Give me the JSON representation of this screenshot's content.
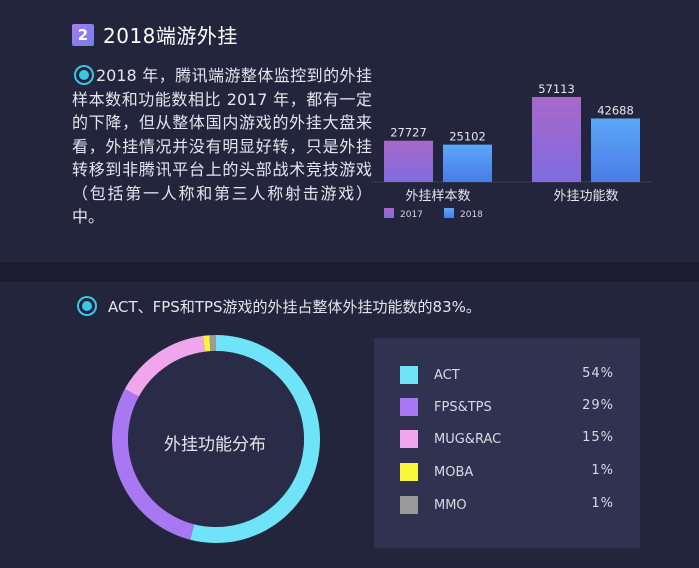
{
  "header": {
    "number": "2",
    "title": "2018端游外挂"
  },
  "intro": {
    "text": "2018 年，腾讯端游整体监控到的外挂样本数和功能数相比 2017 年，都有一定的下降，但从整体国内游戏的外挂大盘来看，外挂情况并没有明显好转，只是外挂转移到非腾讯平台上的头部战术竞技游戏（包括第一人称和第三人称射击游戏）中。"
  },
  "summary": {
    "text": "ACT、FPS和TPS游戏的外挂占整体外挂功能数的83%。"
  },
  "donut_center_label": "外挂功能分布",
  "colors": {
    "accent": "#39c8e6",
    "bar_2017_top": "#a968c9",
    "bar_2017_bottom": "#7f6ce0",
    "bar_2018_top": "#5aa7f7",
    "bar_2018_bottom": "#4a7ce8"
  },
  "chart_data": [
    {
      "type": "bar",
      "categories": [
        "外挂样本数",
        "外挂功能数"
      ],
      "series": [
        {
          "name": "2017",
          "values": [
            27727,
            57113
          ],
          "color": "#9a6ad4"
        },
        {
          "name": "2018",
          "values": [
            25102,
            42688
          ],
          "color": "#58a3f5"
        }
      ],
      "data_labels": [
        [
          "27727",
          "57113"
        ],
        [
          "25102",
          "42688"
        ]
      ],
      "legend_position": "bottom-left",
      "grid": false
    },
    {
      "type": "pie",
      "title": "外挂功能分布",
      "labels": [
        "ACT",
        "FPS&TPS",
        "MUG&RAC",
        "MOBA",
        "MMO"
      ],
      "values": [
        54,
        29,
        15,
        1,
        1
      ],
      "value_labels": [
        "54%",
        "29%",
        "15%",
        "1%",
        "1%"
      ],
      "colors": [
        "#6fe3f7",
        "#a877f2",
        "#f0a6ec",
        "#f8f53a",
        "#9a9a9a"
      ],
      "legend_position": "right"
    }
  ]
}
